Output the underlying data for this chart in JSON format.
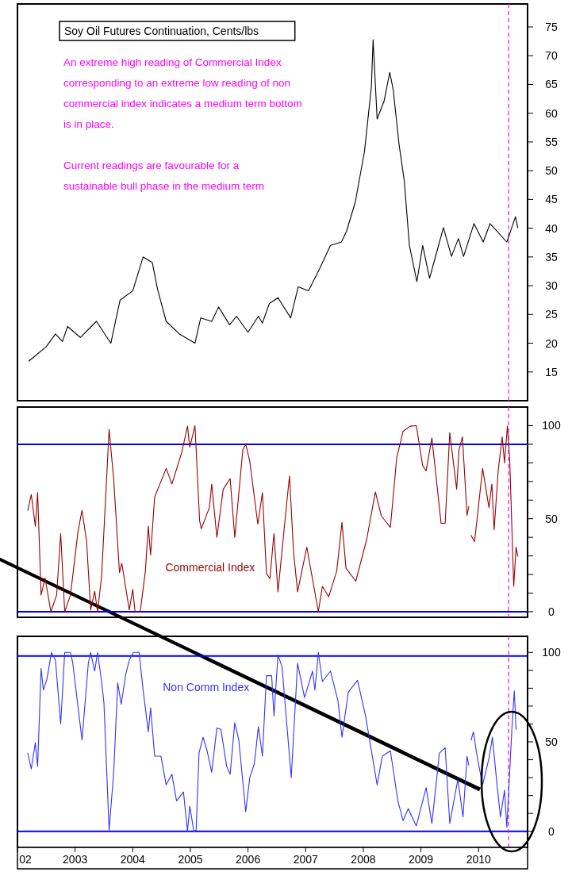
{
  "chart_data": [
    {
      "type": "line",
      "title": "Soy Oil Futures Continuation, Cents/lbs",
      "annotations": [
        "An extreme high reading of Commercial Index corresponding to an extreme low reading of non commercial index indicates a medium term bottom is in place.",
        "Current readings are favourable for a sustainable bull phase in the medium term"
      ],
      "x": [
        2002.2,
        2002.5,
        2002.66,
        2002.78,
        2002.87,
        2003.09,
        2003.37,
        2003.62,
        2003.78,
        2004.0,
        2004.18,
        2004.34,
        2004.43,
        2004.58,
        2004.81,
        2005.08,
        2005.18,
        2005.37,
        2005.49,
        2005.68,
        2005.8,
        2006.0,
        2006.18,
        2006.25,
        2006.37,
        2006.52,
        2006.74,
        2006.87,
        2007.05,
        2007.24,
        2007.43,
        2007.62,
        2007.71,
        2007.86,
        2008.02,
        2008.14,
        2008.17,
        2008.24,
        2008.36,
        2008.46,
        2008.52,
        2008.62,
        2008.71,
        2008.8,
        2008.93,
        2009.03,
        2009.15,
        2009.27,
        2009.39,
        2009.53,
        2009.65,
        2009.74,
        2009.92,
        2010.08,
        2010.2,
        2010.49,
        2010.64,
        2010.68
      ],
      "values": [
        16.9,
        19.4,
        21.6,
        20.3,
        22.9,
        21,
        23.8,
        20,
        27.5,
        29.1,
        35,
        34,
        29.4,
        23.8,
        21.6,
        20,
        24.4,
        23.8,
        26.3,
        23.2,
        24.7,
        21.9,
        24.7,
        23.5,
        26.9,
        27.9,
        24.4,
        29.8,
        29.1,
        32.9,
        37,
        37.6,
        39.5,
        44.5,
        53.3,
        64.6,
        72.8,
        59,
        62.1,
        67.1,
        64,
        54.6,
        48.3,
        37,
        30.7,
        37,
        31.3,
        35.7,
        40.1,
        35.1,
        38.2,
        35.1,
        40.8,
        37.6,
        40.8,
        37.6,
        42,
        40.1
      ],
      "color": "#000000",
      "xlim": [
        2002,
        2010.85
      ],
      "ylim": [
        10,
        79
      ],
      "yticks": [
        15,
        20,
        25,
        30,
        35,
        40,
        45,
        50,
        55,
        60,
        65,
        70,
        75
      ],
      "ref_lines": [
        {
          "axis": "x",
          "value": 2010.52,
          "color": "#ff00ff",
          "line_style": "dashed"
        }
      ],
      "tick_labels": "y"
    },
    {
      "type": "line",
      "x": [
        2002.18,
        2002.24,
        2002.31,
        2002.35,
        2002.41,
        2002.48,
        2002.58,
        2002.68,
        2002.75,
        2002.82,
        2002.92,
        2003.05,
        2003.12,
        2003.2,
        2003.27,
        2003.34,
        2003.39,
        2003.46,
        2003.59,
        2003.67,
        2003.77,
        2003.81,
        2003.94,
        2004.0,
        2004.04,
        2004.13,
        2004.22,
        2004.27,
        2004.31,
        2004.38,
        2004.58,
        2004.68,
        2004.85,
        2004.95,
        2004.99,
        2005.08,
        2005.16,
        2005.19,
        2005.33,
        2005.37,
        2005.46,
        2005.57,
        2005.69,
        2005.77,
        2005.91,
        2005.96,
        2006.03,
        2006.17,
        2006.25,
        2006.32,
        2006.38,
        2006.45,
        2006.52,
        2006.65,
        2006.72,
        2006.79,
        2006.86,
        2007.02,
        2007.22,
        2007.29,
        2007.4,
        2007.54,
        2007.63,
        2007.7,
        2007.87,
        2008.06,
        2008.21,
        2008.31,
        2008.47,
        2008.58,
        2008.69,
        2008.81,
        2008.92,
        2009.03,
        2009.09,
        2009.19,
        2009.35,
        2009.42,
        2009.5,
        2009.62,
        2009.66,
        2009.72,
        2009.8,
        2009.83,
        2009.85,
        2009.87,
        2009.93,
        2010.07,
        2010.18,
        2010.23,
        2010.27,
        2010.34,
        2010.41,
        2010.45,
        2010.5,
        2010.54,
        2010.61,
        2010.65,
        2010.68
      ],
      "series": [
        {
          "name": "Commercial Index",
          "color": "#990000",
          "values": [
            54.5,
            63,
            46,
            64,
            9,
            18,
            0,
            9,
            42,
            0,
            9,
            43,
            54.5,
            37.6,
            1,
            11,
            0,
            19,
            98,
            71,
            21,
            26,
            1,
            12,
            0,
            0,
            22,
            46,
            30.5,
            61.6,
            77,
            68.6,
            85.6,
            99.7,
            88.4,
            100,
            49,
            44.6,
            56,
            68.6,
            40,
            65.8,
            71.5,
            40,
            87,
            90,
            81,
            47,
            64,
            20.6,
            17.8,
            42,
            10.7,
            51.7,
            73,
            32,
            10.7,
            34.7,
            0,
            13.6,
            8,
            22,
            48,
            23.4,
            16.4,
            39,
            64.4,
            51.7,
            45.3,
            82.8,
            96.9,
            99.7,
            100,
            78.5,
            75.7,
            93.4,
            47.5,
            47.5,
            96.2,
            65.8,
            87,
            94,
            51.7,
            56.6,
            null,
            41,
            37.6,
            77,
            56,
            68.6,
            44,
            75.7,
            94,
            80,
            99.7,
            82,
            13.6,
            34.7,
            29.8
          ]
        }
      ],
      "xlim": [
        2002,
        2010.85
      ],
      "ylim": [
        -3,
        110
      ],
      "yticks": [
        0,
        {
          "value": 10,
          "label": null
        },
        {
          "value": 20,
          "label": null
        },
        {
          "value": 30,
          "label": null
        },
        {
          "value": 40,
          "label": null
        },
        50,
        {
          "value": 60,
          "label": null
        },
        {
          "value": 70,
          "label": null
        },
        {
          "value": 80,
          "label": null
        },
        {
          "value": 90,
          "label": null
        },
        100
      ],
      "ref_lines": [
        {
          "axis": "y",
          "value": 0,
          "color": "#0000ff"
        },
        {
          "axis": "y",
          "value": 90,
          "color": "#0000ff"
        },
        {
          "axis": "x",
          "value": 2010.52,
          "color": "#ff00ff",
          "line_style": "dashed"
        }
      ],
      "tick_labels": "y"
    },
    {
      "type": "line",
      "x": [
        2002.18,
        2002.24,
        2002.31,
        2002.35,
        2002.41,
        2002.45,
        2002.51,
        2002.59,
        2002.66,
        2002.75,
        2002.82,
        2002.92,
        2002.96,
        2003.12,
        2003.23,
        2003.27,
        2003.34,
        2003.39,
        2003.46,
        2003.5,
        2003.59,
        2003.67,
        2003.74,
        2003.8,
        2003.88,
        2003.94,
        2004.01,
        2004.11,
        2004.18,
        2004.27,
        2004.31,
        2004.38,
        2004.49,
        2004.58,
        2004.68,
        2004.76,
        2004.88,
        2004.95,
        2004.99,
        2005.06,
        2005.1,
        2005.15,
        2005.22,
        2005.29,
        2005.37,
        2005.46,
        2005.53,
        2005.63,
        2005.69,
        2005.77,
        2005.84,
        2005.96,
        2006.03,
        2006.11,
        2006.18,
        2006.25,
        2006.32,
        2006.41,
        2006.45,
        2006.52,
        2006.59,
        2006.75,
        2006.86,
        2006.98,
        2007.12,
        2007.16,
        2007.22,
        2007.29,
        2007.43,
        2007.56,
        2007.63,
        2007.74,
        2007.9,
        2008.04,
        2008.24,
        2008.33,
        2008.47,
        2008.6,
        2008.69,
        2008.78,
        2008.92,
        2009.09,
        2009.19,
        2009.32,
        2009.42,
        2009.5,
        2009.64,
        2009.73,
        2009.8,
        2009.83,
        2009.85,
        2009.87,
        2009.91,
        2009.98,
        2010.07,
        2010.18,
        2010.24,
        2010.32,
        2010.38,
        2010.45,
        2010.49,
        2010.58,
        2010.62,
        2010.65
      ],
      "series": [
        {
          "name": "Non Comm Index",
          "color": "#3333ff",
          "values": [
            43.7,
            34.8,
            49.6,
            36.3,
            91,
            79,
            85,
            100,
            95.6,
            60,
            100,
            100,
            94,
            51,
            94,
            100,
            89.6,
            100,
            83.7,
            71.9,
            0.7,
            33,
            83,
            71,
            88,
            95.6,
            100,
            100,
            79,
            55.6,
            69,
            42,
            42,
            26,
            31.9,
            17,
            22,
            0,
            14,
            0,
            0.7,
            43.7,
            52.6,
            45,
            33,
            57.8,
            57,
            36.3,
            31.9,
            60.7,
            51,
            11,
            30,
            37.8,
            58.5,
            42,
            87,
            87,
            64.4,
            98.5,
            92,
            30,
            94,
            74.8,
            89.6,
            79,
            100,
            83.7,
            89.6,
            73,
            52.6,
            77.8,
            84.4,
            64.4,
            26,
            42,
            45,
            17,
            6,
            12.6,
            3,
            24.4,
            4.4,
            43.7,
            46.7,
            4.4,
            29,
            8,
            42,
            37,
            null,
            51,
            55.6,
            40.7,
            26,
            40.7,
            52.6,
            26,
            8,
            23,
            2.2,
            58.5,
            78.5,
            57
          ]
        }
      ],
      "xlim": [
        2002,
        2010.85
      ],
      "xticks": [
        {
          "value": 2002,
          "label": "02"
        },
        2003,
        2004,
        2005,
        2006,
        2007,
        2008,
        2009,
        2010
      ],
      "ylim": [
        -9,
        109
      ],
      "yticks": [
        0,
        {
          "value": 10,
          "label": null
        },
        {
          "value": 20,
          "label": null
        },
        {
          "value": 30,
          "label": null
        },
        {
          "value": 40,
          "label": null
        },
        50,
        {
          "value": 60,
          "label": null
        },
        {
          "value": 70,
          "label": null
        },
        {
          "value": 80,
          "label": null
        },
        {
          "value": 90,
          "label": null
        },
        100
      ],
      "ref_lines": [
        {
          "axis": "y",
          "value": 0,
          "color": "#0000ff"
        },
        {
          "axis": "y",
          "value": 98,
          "color": "#0000ff"
        },
        {
          "axis": "x",
          "value": 2010.52,
          "color": "#ff00ff",
          "line_style": "dashed"
        }
      ]
    }
  ]
}
